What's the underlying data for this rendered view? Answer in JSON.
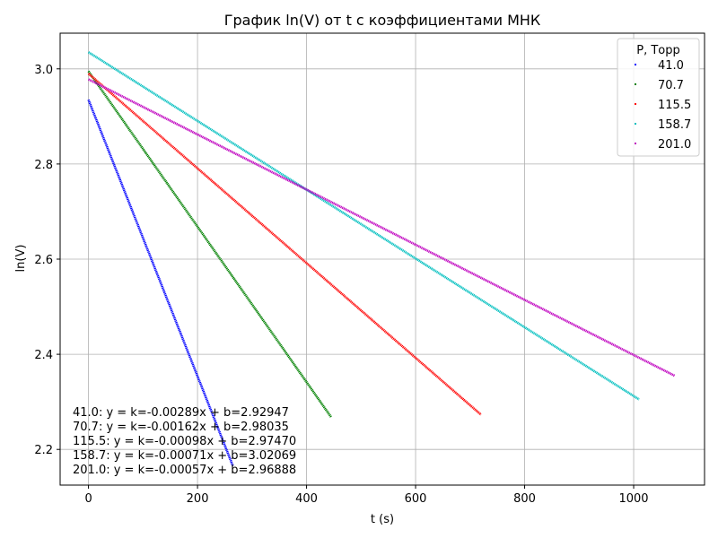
{
  "chart_data": {
    "type": "scatter",
    "title": "График ln(V) от t с коэффициентами МНК",
    "xlabel": "t (s)",
    "ylabel": "ln(V)",
    "xlim": [
      -52,
      1130
    ],
    "ylim": [
      2.125,
      3.075
    ],
    "xticks": [
      0,
      200,
      400,
      600,
      800,
      1000
    ],
    "xtick_labels": [
      "0",
      "200",
      "400",
      "600",
      "800",
      "1000"
    ],
    "yticks": [
      2.2,
      2.4,
      2.6,
      2.8,
      3.0
    ],
    "ytick_labels": [
      "2.2",
      "2.4",
      "2.6",
      "2.8",
      "3.0"
    ],
    "grid": true,
    "legend": {
      "title": "P, Торр",
      "placement": "top-right"
    },
    "series": [
      {
        "name": "41.0",
        "color": "#0000ff",
        "t_start": 0,
        "t_end": 265,
        "y_start": 2.935,
        "y_end": 2.165
      },
      {
        "name": "70.7",
        "color": "#008000",
        "t_start": 0,
        "t_end": 445,
        "y_start": 2.995,
        "y_end": 2.268
      },
      {
        "name": "115.5",
        "color": "#ff0000",
        "t_start": 0,
        "t_end": 720,
        "y_start": 2.99,
        "y_end": 2.273
      },
      {
        "name": "158.7",
        "color": "#00bfbf",
        "t_start": 0,
        "t_end": 1010,
        "y_start": 3.035,
        "y_end": 2.305
      },
      {
        "name": "201.0",
        "color": "#bf00bf",
        "t_start": 0,
        "t_end": 1075,
        "y_start": 2.978,
        "y_end": 2.355
      }
    ],
    "annotations": [
      "41.0: y = k=-0.00289x + b=2.92947",
      "70.7: y = k=-0.00162x + b=2.98035",
      "115.5: y = k=-0.00098x + b=2.97470",
      "158.7: y = k=-0.00071x + b=3.02069",
      "201.0: y = k=-0.00057x + b=2.96888"
    ]
  }
}
